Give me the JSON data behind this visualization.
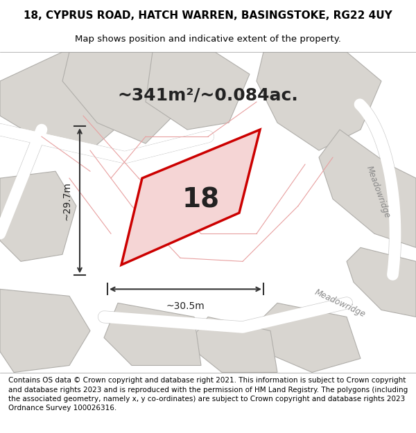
{
  "title_line1": "18, CYPRUS ROAD, HATCH WARREN, BASINGSTOKE, RG22 4UY",
  "title_line2": "Map shows position and indicative extent of the property.",
  "area_text": "~341m²/~0.084ac.",
  "property_number": "18",
  "dim_width": "~30.5m",
  "dim_height": "~29.7m",
  "footer_text": "Contains OS data © Crown copyright and database right 2021. This information is subject to Crown copyright and database rights 2023 and is reproduced with the permission of HM Land Registry. The polygons (including the associated geometry, namely x, y co-ordinates) are subject to Crown copyright and database rights 2023 Ordnance Survey 100026316.",
  "bg_color": "#f0eeeb",
  "map_bg": "#e8e6e2",
  "property_fill": "#f5d5d5",
  "property_edge": "#cc0000",
  "road_color": "#ffffff",
  "road_stroke": "#cccccc",
  "block_fill": "#d8d5d0",
  "block_stroke": "#aaaaaa",
  "dim_line_color": "#333333",
  "street_label_color": "#888888",
  "title_fontsize": 11,
  "subtitle_fontsize": 9.5,
  "area_fontsize": 18,
  "number_fontsize": 28,
  "dim_fontsize": 10,
  "footer_fontsize": 7.5
}
